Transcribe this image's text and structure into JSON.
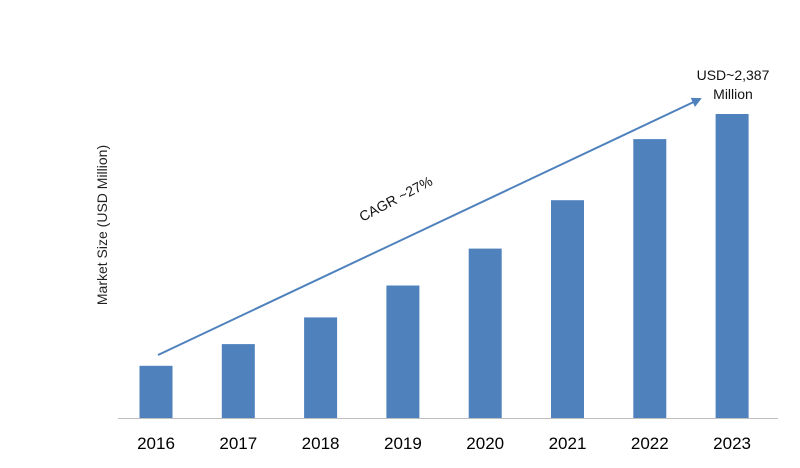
{
  "chart_data": {
    "type": "bar",
    "title": "",
    "xlabel": "",
    "ylabel": "Market Size (USD Million)",
    "categories": [
      "2016",
      "2017",
      "2018",
      "2019",
      "2020",
      "2021",
      "2022",
      "2023"
    ],
    "values": [
      410,
      580,
      790,
      1040,
      1330,
      1710,
      2190,
      2387
    ],
    "ylim": [
      0,
      2387
    ],
    "grid": false,
    "legend": "none",
    "bar_color": "#4f81bd",
    "arrow_color": "#4f81bd",
    "annotations": {
      "cagr": "CAGR ~27%",
      "final_line1": "USD~2,387",
      "final_line2": "Million"
    }
  }
}
